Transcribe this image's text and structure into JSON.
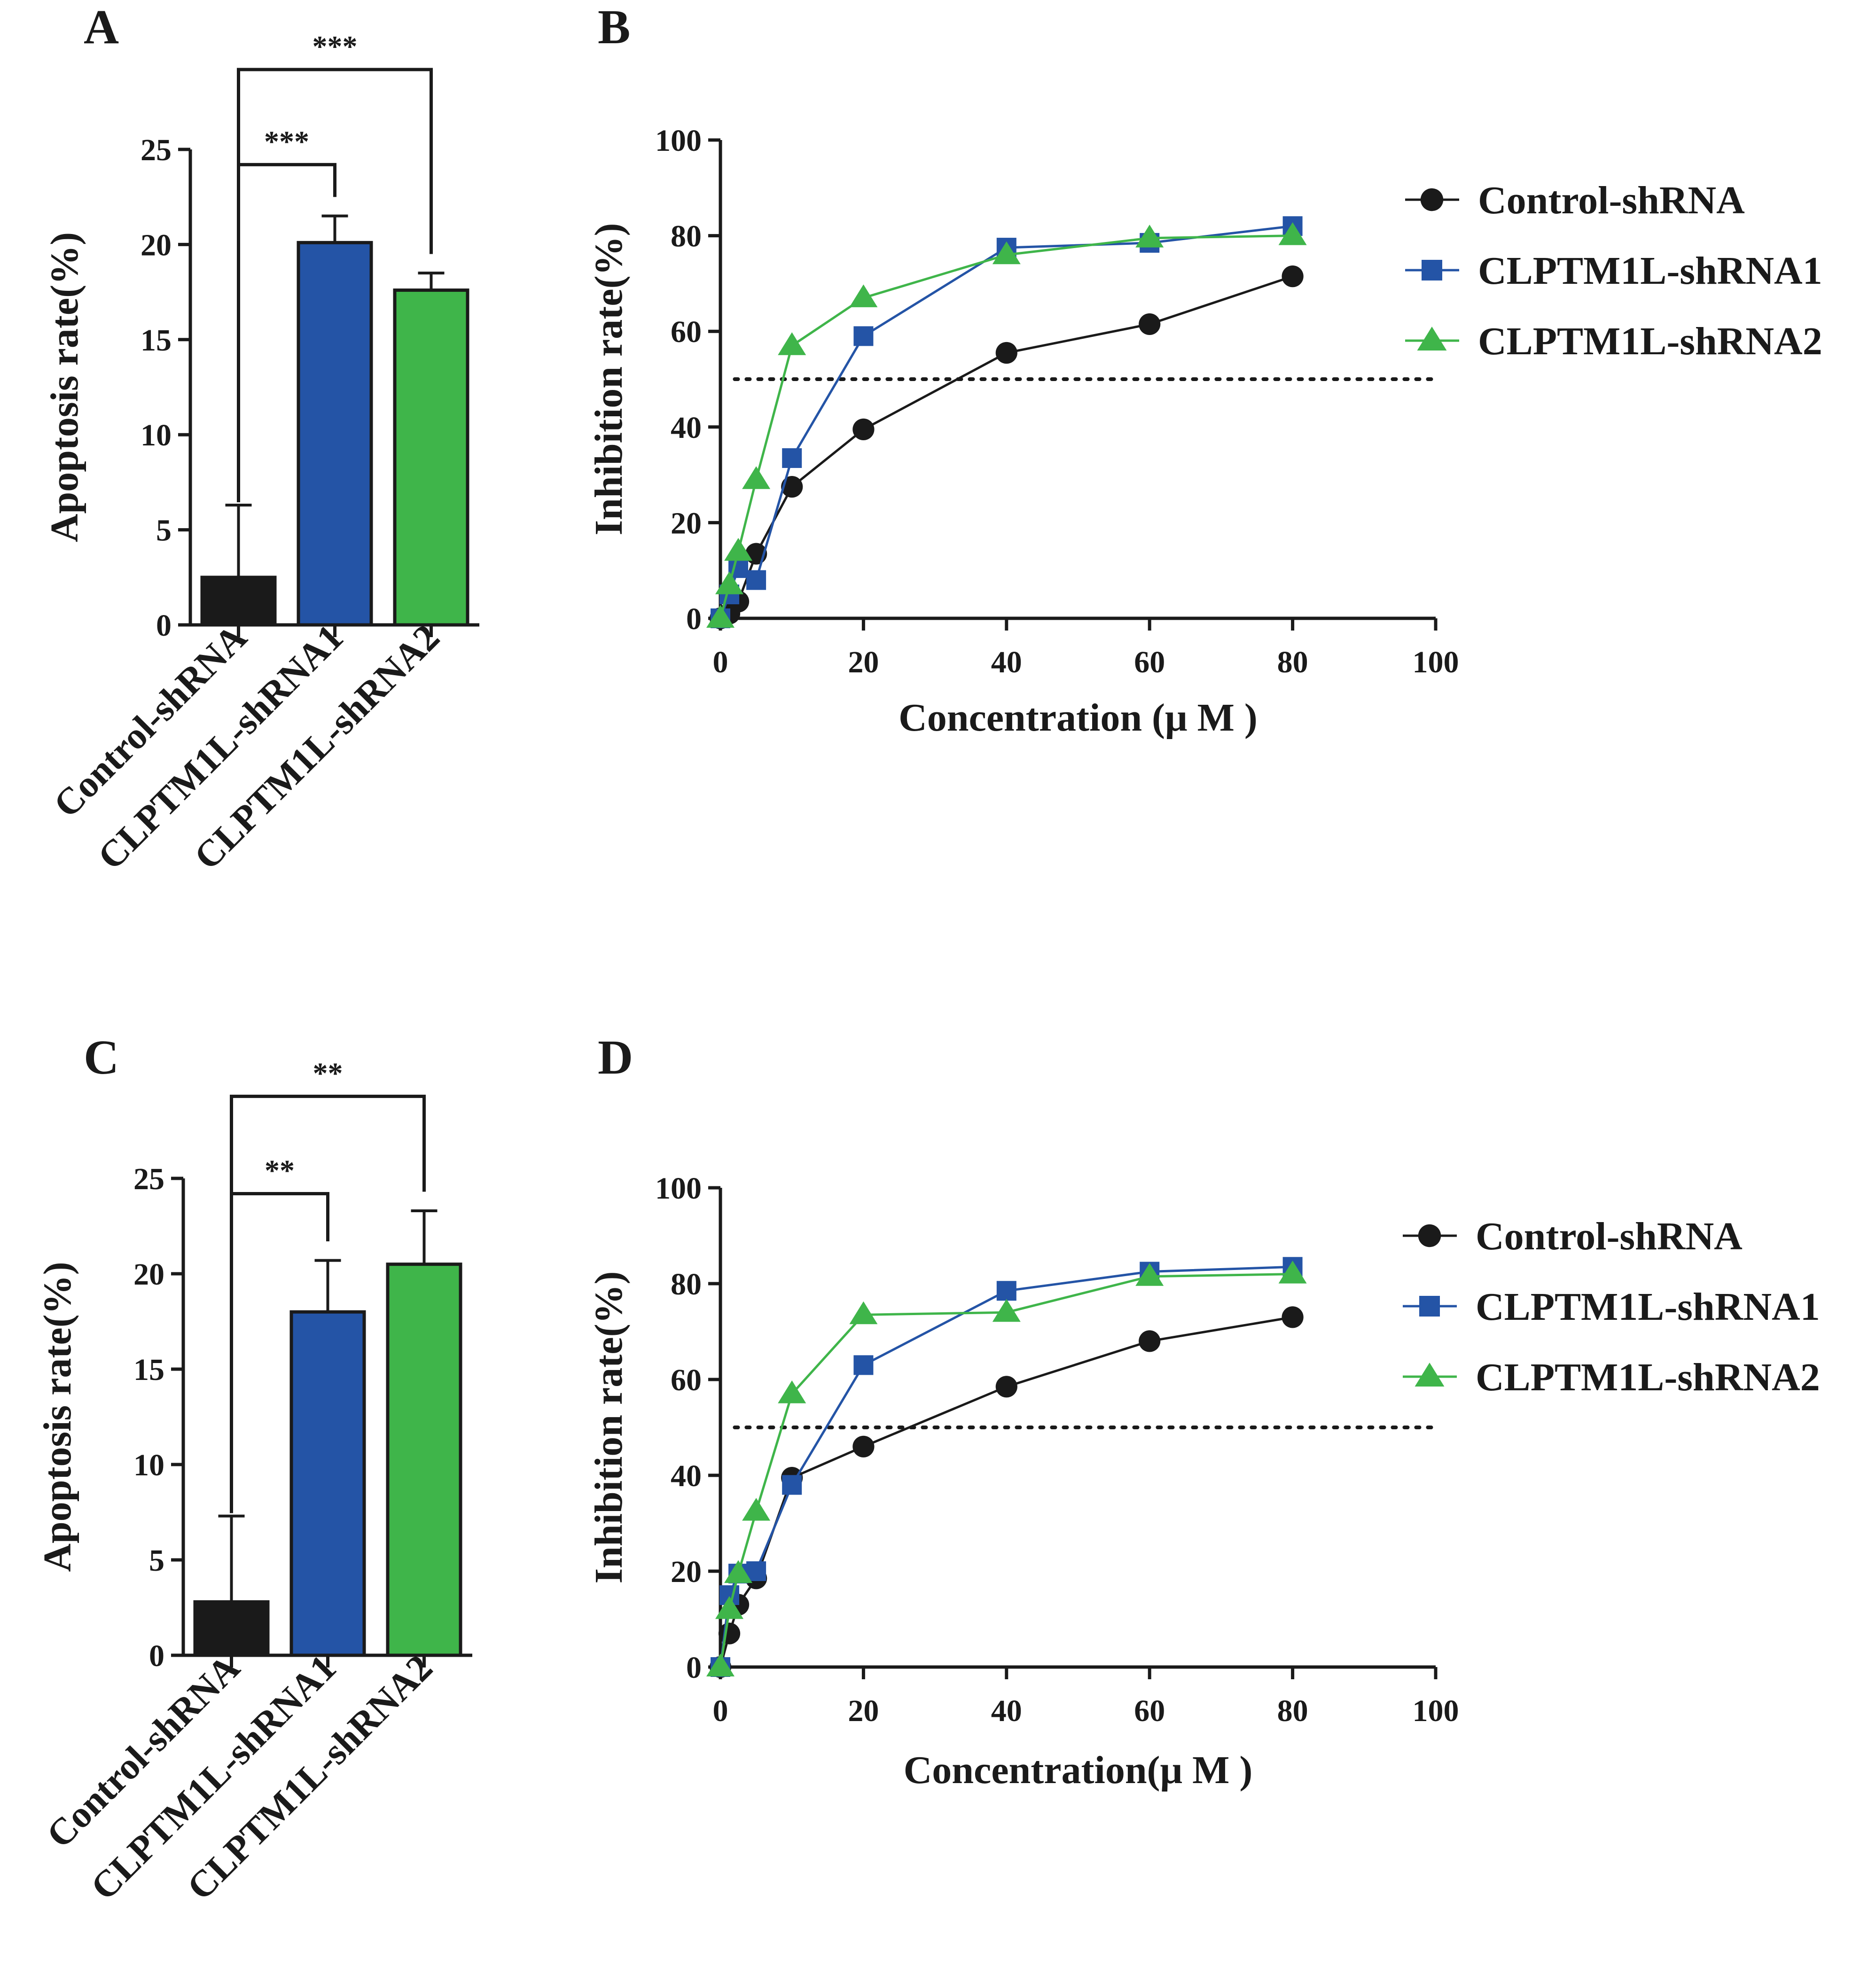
{
  "colors": {
    "control": "#1a1a1a",
    "shrna1": "#2454a6",
    "shrna2": "#3fb54a",
    "axis": "#1a1a1a"
  },
  "panels": {
    "A": {
      "letter": "A"
    },
    "B": {
      "letter": "B"
    },
    "C": {
      "letter": "C"
    },
    "D": {
      "letter": "D"
    }
  },
  "chart_data": [
    {
      "panel": "A",
      "type": "bar",
      "ylabel": "Apoptosis rate(%)",
      "ylim": [
        0,
        25
      ],
      "yticks": [
        0,
        5,
        10,
        15,
        20,
        25
      ],
      "categories": [
        "Control-shRNA",
        "CLPTM1L-shRNA1",
        "CLPTM1L-shRNA2"
      ],
      "values": [
        2.5,
        20.1,
        17.6
      ],
      "errors": [
        3.8,
        1.4,
        0.9
      ],
      "bar_colors": [
        "#1a1a1a",
        "#2454a6",
        "#3fb54a"
      ],
      "significance": [
        {
          "from": 0,
          "to": 1,
          "label": "***",
          "y": 24.2
        },
        {
          "from": 0,
          "to": 2,
          "label": "***",
          "y": 29.2
        }
      ]
    },
    {
      "panel": "B",
      "type": "line",
      "xlabel": "Concentration (μ M )",
      "ylabel": "Inhibition rate(%)",
      "xlim": [
        0,
        100
      ],
      "ylim": [
        0,
        100
      ],
      "xticks": [
        0,
        20,
        40,
        60,
        80,
        100
      ],
      "yticks": [
        0,
        20,
        40,
        60,
        80,
        100
      ],
      "reference_line_y": 50,
      "x": [
        0,
        1.25,
        2.5,
        5,
        10,
        20,
        40,
        60,
        80
      ],
      "series": [
        {
          "name": "Control-shRNA",
          "marker": "circle",
          "color": "#1a1a1a",
          "values": [
            0,
            1,
            3.5,
            13.5,
            27.5,
            39.5,
            55.5,
            61.5,
            71.5
          ]
        },
        {
          "name": "CLPTM1L-shRNA1",
          "marker": "square",
          "color": "#2454a6",
          "values": [
            0,
            5,
            10.5,
            8,
            33.5,
            59,
            77.5,
            78.5,
            82
          ]
        },
        {
          "name": "CLPTM1L-shRNA2",
          "marker": "triangle",
          "color": "#3fb54a",
          "values": [
            0,
            7,
            14,
            29,
            57,
            67,
            76,
            79.5,
            80
          ]
        }
      ]
    },
    {
      "panel": "C",
      "type": "bar",
      "ylabel": "Apoptosis rate(%)",
      "ylim": [
        0,
        25
      ],
      "yticks": [
        0,
        5,
        10,
        15,
        20,
        25
      ],
      "categories": [
        "Control-shRNA",
        "CLPTM1L-shRNA1",
        "CLPTM1L-shRNA2"
      ],
      "values": [
        2.8,
        18.0,
        20.5
      ],
      "errors": [
        4.5,
        2.7,
        2.8
      ],
      "bar_colors": [
        "#1a1a1a",
        "#2454a6",
        "#3fb54a"
      ],
      "significance": [
        {
          "from": 0,
          "to": 1,
          "label": "**",
          "y": 24.2
        },
        {
          "from": 0,
          "to": 2,
          "label": "**",
          "y": 29.3
        }
      ]
    },
    {
      "panel": "D",
      "type": "line",
      "xlabel": "Concentration(μ M )",
      "ylabel": "Inhibition rate(%)",
      "xlim": [
        0,
        100
      ],
      "ylim": [
        0,
        100
      ],
      "xticks": [
        0,
        20,
        40,
        60,
        80,
        100
      ],
      "yticks": [
        0,
        20,
        40,
        60,
        80,
        100
      ],
      "reference_line_y": 50,
      "x": [
        0,
        1.25,
        2.5,
        5,
        10,
        20,
        40,
        60,
        80
      ],
      "series": [
        {
          "name": "Control-shRNA",
          "marker": "circle",
          "color": "#1a1a1a",
          "values": [
            0,
            7,
            13,
            18.5,
            39.5,
            46,
            58.5,
            68,
            73
          ]
        },
        {
          "name": "CLPTM1L-shRNA1",
          "marker": "square",
          "color": "#2454a6",
          "values": [
            0,
            15,
            19.5,
            20,
            38,
            63,
            78.5,
            82.5,
            83.5
          ]
        },
        {
          "name": "CLPTM1L-shRNA2",
          "marker": "triangle",
          "color": "#3fb54a",
          "values": [
            0,
            12,
            19.5,
            32.5,
            57,
            73.5,
            74,
            81.5,
            82
          ]
        }
      ]
    }
  ]
}
